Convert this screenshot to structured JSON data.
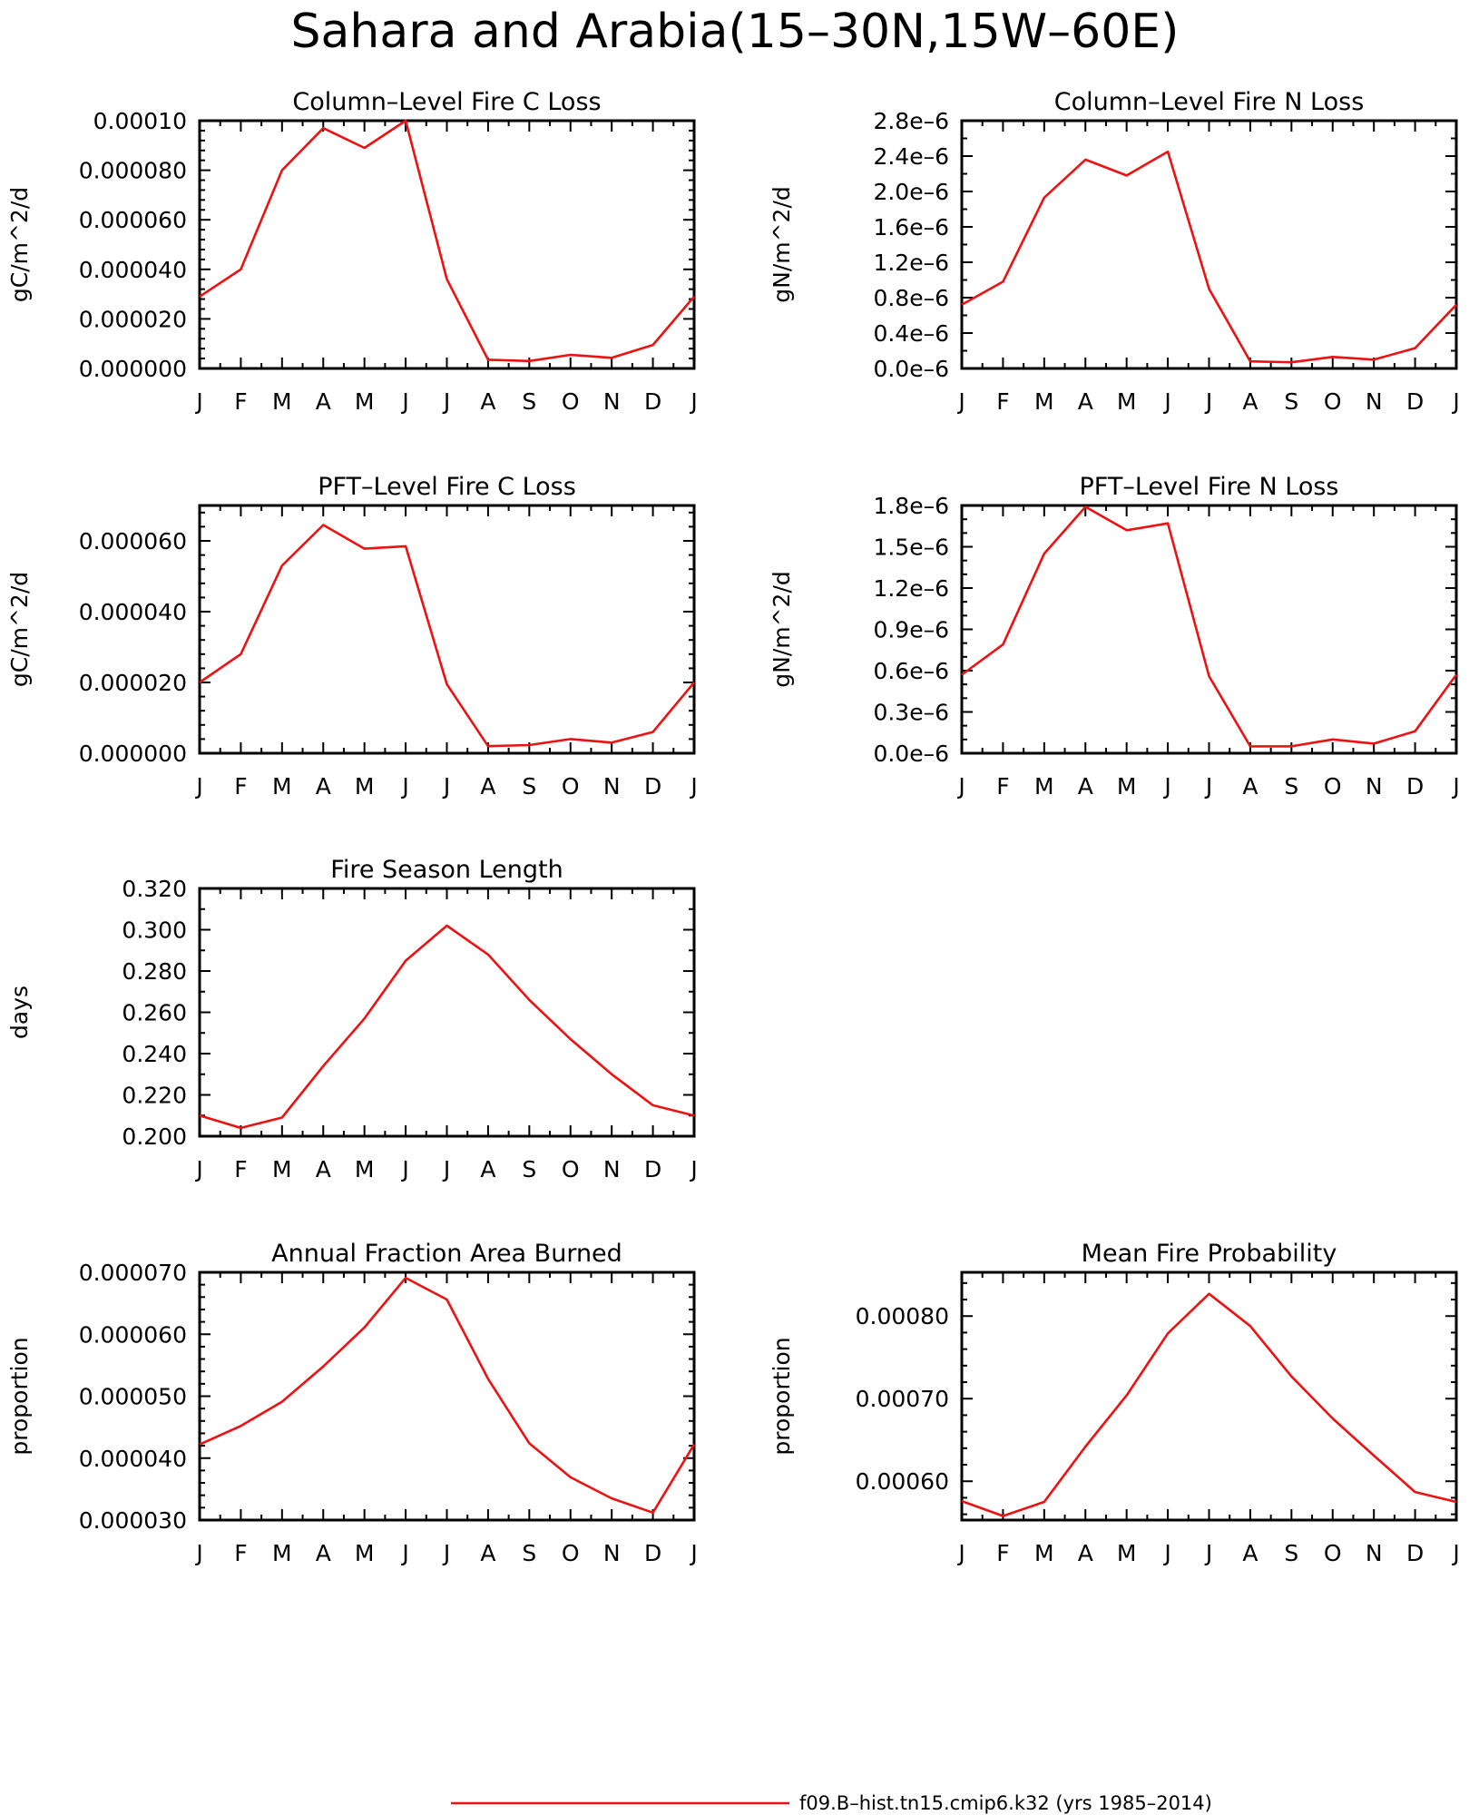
{
  "title": "Sahara and Arabia(15–30N,15W–60E)",
  "colors": {
    "series": "#ee1111",
    "axis": "#000000"
  },
  "legend": {
    "label": "f09.B–hist.tn15.cmip6.k32 (yrs 1985–2014)"
  },
  "chart_data": [
    {
      "type": "line",
      "title": "Column–Level Fire C Loss",
      "ylabel": "gC/m^2/d",
      "categories": [
        "J",
        "F",
        "M",
        "A",
        "M",
        "J",
        "J",
        "A",
        "S",
        "O",
        "N",
        "D",
        "J"
      ],
      "yticks": [
        "0.000000",
        "0.000020",
        "0.000040",
        "0.000060",
        "0.000080",
        "0.00010"
      ],
      "ytick_values": [
        0,
        2e-05,
        4e-05,
        6e-05,
        8e-05,
        0.0001
      ],
      "ylim": [
        0,
        0.0001
      ],
      "minor_per_major": 4,
      "series": [
        {
          "values": [
            2.9e-05,
            4e-05,
            8e-05,
            9.7e-05,
            8.9e-05,
            0.0001,
            3.6e-05,
            3.5e-06,
            3e-06,
            5.5e-06,
            4.3e-06,
            9.5e-06,
            2.9e-05
          ]
        }
      ]
    },
    {
      "type": "line",
      "title": "Column–Level Fire N Loss",
      "ylabel": "gN/m^2/d",
      "categories": [
        "J",
        "F",
        "M",
        "A",
        "M",
        "J",
        "J",
        "A",
        "S",
        "O",
        "N",
        "D",
        "J"
      ],
      "yticks": [
        "0.0e–6",
        "0.4e–6",
        "0.8e–6",
        "1.2e–6",
        "1.6e–6",
        "2.0e–6",
        "2.4e–6",
        "2.8e–6"
      ],
      "ytick_values": [
        0,
        0.4,
        0.8,
        1.2,
        1.6,
        2.0,
        2.4,
        2.8
      ],
      "ylim": [
        0,
        2.8
      ],
      "minor_per_major": 1,
      "series": [
        {
          "values": [
            0.72,
            0.98,
            1.93,
            2.36,
            2.18,
            2.45,
            0.9,
            0.08,
            0.07,
            0.13,
            0.1,
            0.23,
            0.72
          ]
        }
      ]
    },
    {
      "type": "line",
      "title": "PFT–Level Fire C Loss",
      "ylabel": "gC/m^2/d",
      "categories": [
        "J",
        "F",
        "M",
        "A",
        "M",
        "J",
        "J",
        "A",
        "S",
        "O",
        "N",
        "D",
        "J"
      ],
      "yticks": [
        "0.000000",
        "0.000020",
        "0.000040",
        "0.000060"
      ],
      "ytick_values": [
        0,
        2e-05,
        4e-05,
        6e-05
      ],
      "ylim": [
        0,
        7e-05
      ],
      "minor_per_major": 4,
      "series": [
        {
          "values": [
            2e-05,
            2.8e-05,
            5.3e-05,
            6.45e-05,
            5.78e-05,
            5.85e-05,
            1.95e-05,
            2e-06,
            2.3e-06,
            4e-06,
            3e-06,
            6e-06,
            2e-05
          ]
        }
      ]
    },
    {
      "type": "line",
      "title": "PFT–Level Fire N Loss",
      "ylabel": "gN/m^2/d",
      "categories": [
        "J",
        "F",
        "M",
        "A",
        "M",
        "J",
        "J",
        "A",
        "S",
        "O",
        "N",
        "D",
        "J"
      ],
      "yticks": [
        "0.0e–6",
        "0.3e–6",
        "0.6e–6",
        "0.9e–6",
        "1.2e–6",
        "1.5e–6",
        "1.8e–6"
      ],
      "ytick_values": [
        0,
        0.3,
        0.6,
        0.9,
        1.2,
        1.5,
        1.8
      ],
      "ylim": [
        0,
        1.8
      ],
      "minor_per_major": 2,
      "series": [
        {
          "values": [
            0.57,
            0.79,
            1.45,
            1.79,
            1.62,
            1.67,
            0.56,
            0.05,
            0.05,
            0.1,
            0.07,
            0.16,
            0.57
          ]
        }
      ]
    },
    {
      "type": "line",
      "title": "Fire Season Length",
      "ylabel": "days",
      "categories": [
        "J",
        "F",
        "M",
        "A",
        "M",
        "J",
        "J",
        "A",
        "S",
        "O",
        "N",
        "D",
        "J"
      ],
      "yticks": [
        "0.200",
        "0.220",
        "0.240",
        "0.260",
        "0.280",
        "0.300",
        "0.320"
      ],
      "ytick_values": [
        0.2,
        0.22,
        0.24,
        0.26,
        0.28,
        0.3,
        0.32
      ],
      "ylim": [
        0.2,
        0.32
      ],
      "minor_per_major": 1,
      "series": [
        {
          "values": [
            0.21,
            0.204,
            0.209,
            0.234,
            0.257,
            0.285,
            0.302,
            0.288,
            0.266,
            0.247,
            0.23,
            0.215,
            0.21
          ]
        }
      ]
    },
    {
      "type": "line",
      "title": "Annual Fraction Area Burned",
      "ylabel": "proportion",
      "categories": [
        "J",
        "F",
        "M",
        "A",
        "M",
        "J",
        "J",
        "A",
        "S",
        "O",
        "N",
        "D",
        "J"
      ],
      "yticks": [
        "0.000030",
        "0.000040",
        "0.000050",
        "0.000060",
        "0.000070"
      ],
      "ytick_values": [
        3e-05,
        4e-05,
        5e-05,
        6e-05,
        7e-05
      ],
      "ylim": [
        3e-05,
        7e-05
      ],
      "minor_per_major": 4,
      "series": [
        {
          "values": [
            4.22e-05,
            4.52e-05,
            4.91e-05,
            5.48e-05,
            6.11e-05,
            6.91e-05,
            6.56e-05,
            5.28e-05,
            4.24e-05,
            3.69e-05,
            3.35e-05,
            3.12e-05,
            4.22e-05
          ]
        }
      ]
    },
    {
      "type": "line",
      "title": "Mean Fire Probability",
      "ylabel": "proportion",
      "categories": [
        "J",
        "F",
        "M",
        "A",
        "M",
        "J",
        "J",
        "A",
        "S",
        "O",
        "N",
        "D",
        "J"
      ],
      "yticks": [
        "0.00060",
        "0.00070",
        "0.00080"
      ],
      "ytick_values": [
        0.0006,
        0.0007,
        0.0008
      ],
      "ylim": [
        0.000553,
        0.000853
      ],
      "minor_per_major": 4,
      "series": [
        {
          "values": [
            0.000576,
            0.000558,
            0.000575,
            0.000642,
            0.000704,
            0.000779,
            0.000827,
            0.000788,
            0.000727,
            0.000676,
            0.000631,
            0.000587,
            0.000575
          ]
        }
      ]
    }
  ]
}
